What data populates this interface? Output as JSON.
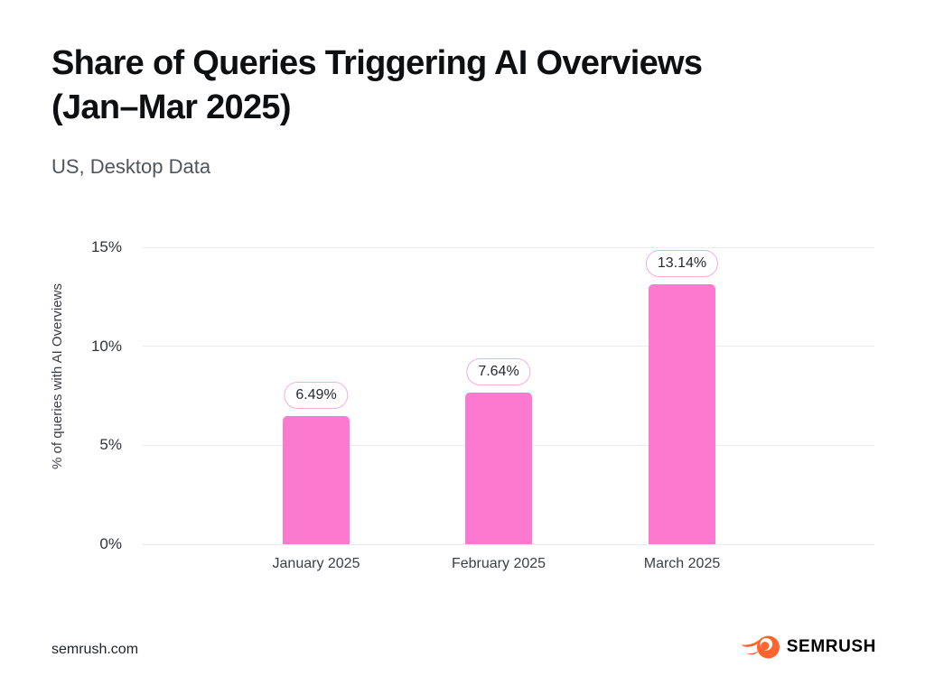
{
  "header": {
    "title_line1": "Share of Queries Triggering AI Overviews",
    "title_line2": "(Jan–Mar 2025)",
    "subtitle": "US, Desktop Data"
  },
  "chart_data": {
    "type": "bar",
    "title": "Share of Queries Triggering AI Overviews (Jan–Mar 2025)",
    "subtitle": "US, Desktop Data",
    "categories": [
      "January 2025",
      "February 2025",
      "March 2025"
    ],
    "values": [
      6.49,
      7.64,
      13.14
    ],
    "value_labels": [
      "6.49%",
      "7.64%",
      "13.14%"
    ],
    "xlabel": "",
    "ylabel": "% of queries with AI Overviews",
    "ylim": [
      0,
      15
    ],
    "ytick_values": [
      0,
      5,
      10,
      15
    ],
    "ytick_labels": [
      "0%",
      "5%",
      "10%",
      "15%"
    ],
    "grid": true,
    "legend": "none",
    "bar_color": "#fb79cf",
    "pill_border_color": "#f6aede",
    "gridline_color": "#ebedf0"
  },
  "footer": {
    "site": "semrush.com",
    "brand": "SEMRUSH",
    "brand_icon": "semrush-flame-icon",
    "brand_orange": "#ff642d"
  }
}
